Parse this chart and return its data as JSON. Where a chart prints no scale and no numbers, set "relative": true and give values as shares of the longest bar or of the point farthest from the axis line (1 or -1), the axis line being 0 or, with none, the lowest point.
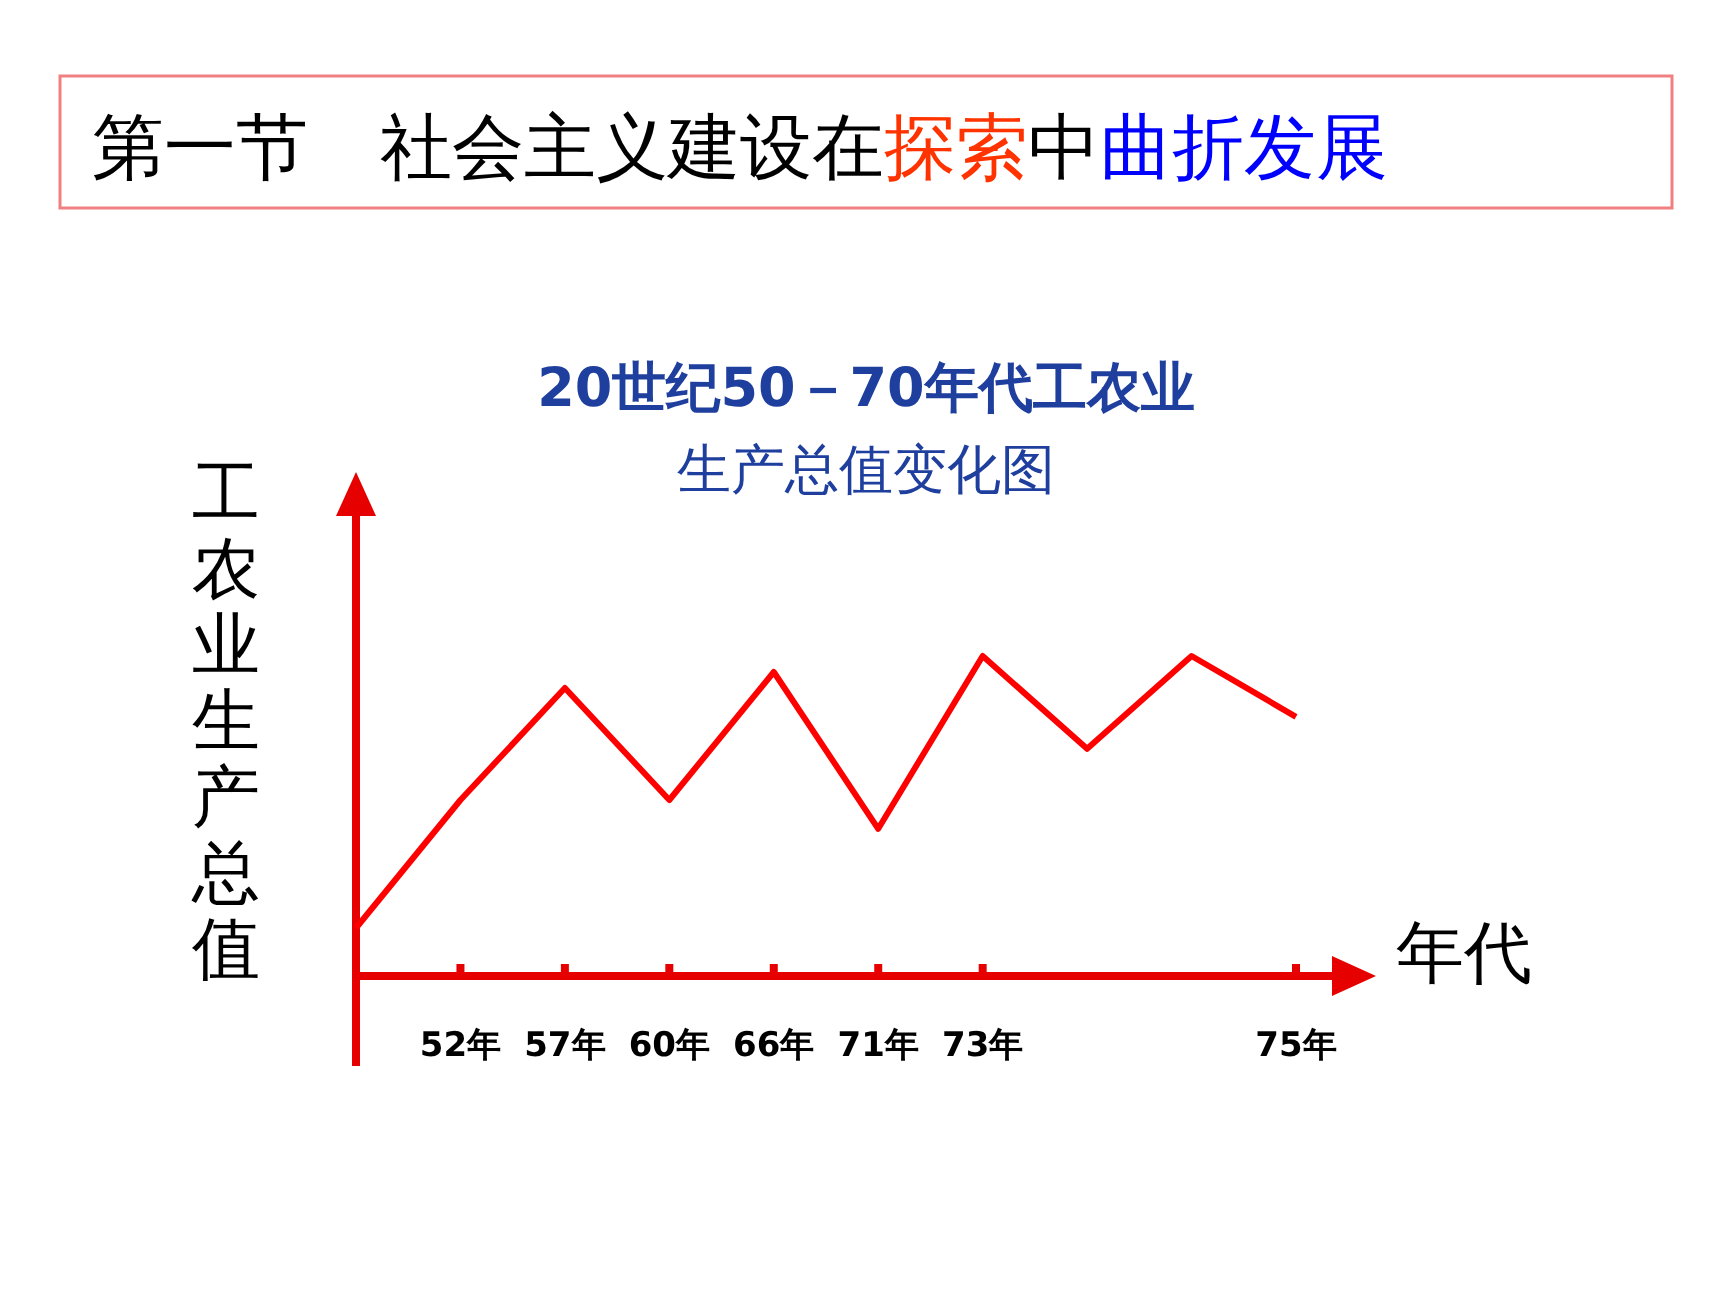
{
  "chart_data": {
    "type": "line",
    "title": "第一节　社会主义建设在探索中曲折发展",
    "subtitle": "20世纪50－70年代工农业生产总值变化图",
    "xlabel": "年代",
    "ylabel": "工农业生产总值",
    "relative": true,
    "categories": [
      null,
      "52年",
      "57年",
      "60年",
      "66年",
      "71年",
      "73年",
      null,
      null,
      "75年"
    ],
    "series": [
      {
        "color": "#ff0000",
        "values": [
          0.15,
          0.55,
          0.9,
          0.55,
          0.95,
          0.46,
          1,
          0.71,
          1,
          0.81
        ]
      }
    ],
    "line_style": "solid"
  }
}
